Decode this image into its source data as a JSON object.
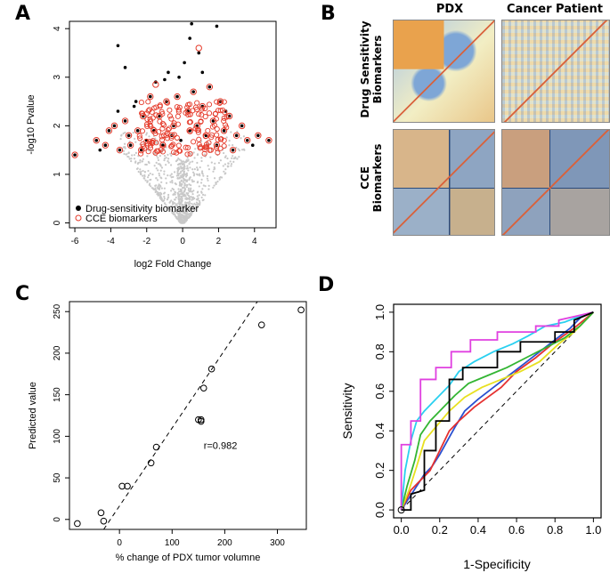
{
  "panels": {
    "a": "A",
    "b": "B",
    "c": "C",
    "d": "D"
  },
  "colors": {
    "drug": "#000000",
    "cce": "#e53a2a",
    "background": "#c8c8c8",
    "heat_warm": "#e8a24a",
    "heat_cool": "#7ea6d6",
    "heat_neutral": "#f2eec4"
  },
  "panel_b": {
    "col_headers": [
      "PDX",
      "Cancer Patient"
    ],
    "row_labels": [
      [
        "Drug Sensitivity",
        "Biomarkers"
      ],
      [
        "CCE",
        "Biomarkers"
      ]
    ]
  },
  "chart_data": [
    {
      "id": "volcano",
      "type": "scatter",
      "xlabel": "log2 Fold Change",
      "ylabel": "-log10 Pvalue",
      "xlim": [
        -6.3,
        5.2
      ],
      "ylim": [
        -0.1,
        4.15
      ],
      "xticks": [
        "-6",
        "-4",
        "-2",
        "0",
        "2",
        "4"
      ],
      "yticks": [
        "0",
        "1",
        "2",
        "3",
        "4"
      ],
      "legend": [
        "Drug-sensitivity biomarker",
        "CCE biomarkers"
      ],
      "series": [
        {
          "name": "Drug-sensitivity biomarker",
          "marker": "filled-dot",
          "x": [
            -6,
            -4.8,
            -4.6,
            -4.3,
            -4.1,
            -3.8,
            -3.6,
            -3.5,
            -3.2,
            -3.0,
            -2.9,
            -2.7,
            -2.5,
            -2.3,
            -2.2,
            -2.0,
            -1.8,
            -1.6,
            -1.5,
            -1.3,
            -1.1,
            -0.9,
            -0.8,
            -0.6,
            -0.5,
            -0.3,
            -0.1,
            0.1,
            0.3,
            0.4,
            0.6,
            0.8,
            0.9,
            1.1,
            1.3,
            1.5,
            1.7,
            1.9,
            2.1,
            2.3,
            2.6,
            2.8,
            3.0,
            3.3,
            3.6,
            3.9,
            4.2,
            4.8,
            -3.6,
            -3.2,
            -1.0,
            0.5,
            1.9,
            0.4,
            -0.2,
            1.1,
            -2.6,
            2.4
          ],
          "y": [
            1.4,
            1.7,
            1.5,
            1.6,
            1.9,
            2.0,
            2.3,
            1.5,
            2.1,
            1.8,
            1.6,
            2.4,
            1.9,
            1.5,
            2.2,
            1.7,
            2.6,
            1.9,
            2.9,
            2.2,
            1.6,
            2.5,
            3.1,
            1.8,
            2.0,
            2.6,
            1.7,
            3.3,
            2.3,
            1.9,
            2.7,
            2.0,
            3.5,
            2.4,
            1.8,
            2.8,
            2.1,
            1.6,
            2.5,
            1.9,
            2.2,
            1.5,
            1.8,
            2.0,
            1.7,
            1.6,
            1.8,
            1.7,
            3.65,
            3.2,
            2.95,
            4.1,
            4.05,
            3.8,
            3.0,
            3.1,
            2.5,
            2.3
          ]
        },
        {
          "name": "CCE biomarkers",
          "marker": "open-circle",
          "x": [
            -6,
            -4.8,
            -4.3,
            -4.1,
            -3.8,
            -3.2,
            -3.0,
            -2.9,
            -2.5,
            -2.3,
            -2.2,
            -1.8,
            -1.6,
            -1.3,
            -1.1,
            -0.9,
            -0.6,
            -0.5,
            -0.3,
            0.3,
            0.6,
            0.8,
            1.1,
            1.3,
            1.5,
            1.7,
            1.9,
            2.1,
            2.3,
            2.6,
            3.0,
            3.3,
            3.6,
            4.2,
            4.8,
            0.9,
            0.4,
            -1.5,
            2.8,
            -3.5
          ],
          "y": [
            1.4,
            1.7,
            1.6,
            1.9,
            2.0,
            2.1,
            1.8,
            1.6,
            1.9,
            1.5,
            2.2,
            2.6,
            1.9,
            2.2,
            1.6,
            2.5,
            1.8,
            2.0,
            2.6,
            2.3,
            2.7,
            2.0,
            2.4,
            1.8,
            2.8,
            2.1,
            1.6,
            2.5,
            1.9,
            2.2,
            1.8,
            2.0,
            1.7,
            1.8,
            1.7,
            3.6,
            1.9,
            2.85,
            1.5,
            1.5
          ]
        }
      ]
    },
    {
      "id": "correlation",
      "type": "scatter",
      "xlabel": "% change of PDX tumor volumne",
      "ylabel": "Predicted value",
      "xlim": [
        -95,
        355
      ],
      "ylim": [
        -12,
        262
      ],
      "xticks": [
        "0",
        "100",
        "200",
        "300"
      ],
      "yticks": [
        "0",
        "50",
        "100",
        "150",
        "200",
        "250"
      ],
      "annotation": "r=0.982",
      "x": [
        -80,
        -35,
        -30,
        5,
        15,
        60,
        70,
        150,
        155,
        155,
        160,
        175,
        270,
        345
      ],
      "y": [
        -5,
        8,
        -2,
        40,
        40,
        68,
        87,
        120,
        118,
        120,
        158,
        181,
        234,
        252
      ],
      "fit_line": {
        "x": [
          -30,
          262
        ],
        "y": [
          -12,
          262
        ]
      }
    },
    {
      "id": "roc",
      "type": "line",
      "xlabel": "1-Specificity",
      "ylabel": "Sensitivity",
      "xlim": [
        -0.04,
        1.04
      ],
      "ylim": [
        -0.04,
        1.04
      ],
      "xticks": [
        "0.0",
        "0.2",
        "0.4",
        "0.6",
        "0.8",
        "1.0"
      ],
      "yticks": [
        "0.0",
        "0.2",
        "0.4",
        "0.6",
        "0.8",
        "1.0"
      ],
      "diagonal": true,
      "series": [
        {
          "name": "black",
          "color": "#000000",
          "x": [
            0,
            0.05,
            0.05,
            0.12,
            0.12,
            0.18,
            0.18,
            0.25,
            0.25,
            0.32,
            0.32,
            0.5,
            0.5,
            0.62,
            0.62,
            0.8,
            0.8,
            0.9,
            0.9,
            1.0
          ],
          "y": [
            0,
            0,
            0.08,
            0.1,
            0.3,
            0.3,
            0.45,
            0.45,
            0.66,
            0.66,
            0.72,
            0.72,
            0.8,
            0.8,
            0.85,
            0.85,
            0.9,
            0.9,
            0.96,
            1.0
          ]
        },
        {
          "name": "magenta",
          "color": "#e040e0",
          "x": [
            0,
            0,
            0.05,
            0.05,
            0.1,
            0.1,
            0.18,
            0.18,
            0.26,
            0.26,
            0.36,
            0.36,
            0.5,
            0.5,
            0.7,
            0.7,
            0.82,
            0.82,
            1.0
          ],
          "y": [
            0,
            0.33,
            0.33,
            0.45,
            0.45,
            0.66,
            0.66,
            0.72,
            0.72,
            0.8,
            0.8,
            0.86,
            0.86,
            0.9,
            0.9,
            0.93,
            0.93,
            0.96,
            1.0
          ]
        },
        {
          "name": "cyan",
          "color": "#2ad0f0",
          "x": [
            0,
            0.02,
            0.05,
            0.08,
            0.12,
            0.18,
            0.25,
            0.3,
            0.38,
            0.48,
            0.58,
            0.66,
            0.75,
            0.85,
            0.93,
            1.0
          ],
          "y": [
            0,
            0.2,
            0.35,
            0.45,
            0.5,
            0.56,
            0.63,
            0.7,
            0.75,
            0.8,
            0.84,
            0.88,
            0.93,
            0.95,
            0.98,
            1.0
          ]
        },
        {
          "name": "green",
          "color": "#33b533",
          "x": [
            0,
            0.03,
            0.07,
            0.1,
            0.15,
            0.2,
            0.28,
            0.35,
            0.45,
            0.55,
            0.65,
            0.75,
            0.85,
            0.93,
            1.0
          ],
          "y": [
            0,
            0.12,
            0.25,
            0.38,
            0.45,
            0.5,
            0.58,
            0.64,
            0.68,
            0.72,
            0.77,
            0.82,
            0.87,
            0.93,
            1.0
          ]
        },
        {
          "name": "yellow",
          "color": "#e8e020",
          "x": [
            0,
            0.04,
            0.08,
            0.12,
            0.18,
            0.25,
            0.33,
            0.42,
            0.52,
            0.62,
            0.72,
            0.82,
            0.9,
            1.0
          ],
          "y": [
            0,
            0.1,
            0.22,
            0.35,
            0.42,
            0.5,
            0.57,
            0.62,
            0.66,
            0.7,
            0.75,
            0.84,
            0.9,
            1.0
          ]
        },
        {
          "name": "red",
          "color": "#e53030",
          "x": [
            0,
            0.05,
            0.1,
            0.15,
            0.2,
            0.25,
            0.3,
            0.38,
            0.45,
            0.52,
            0.6,
            0.7,
            0.8,
            0.9,
            1.0
          ],
          "y": [
            0,
            0.1,
            0.15,
            0.2,
            0.3,
            0.4,
            0.45,
            0.52,
            0.57,
            0.62,
            0.7,
            0.77,
            0.85,
            0.92,
            1.0
          ]
        },
        {
          "name": "blue",
          "color": "#2a50d0",
          "x": [
            0,
            0.04,
            0.08,
            0.12,
            0.16,
            0.2,
            0.24,
            0.28,
            0.33,
            0.4,
            0.48,
            0.56,
            0.64,
            0.72,
            0.8,
            0.88,
            0.94,
            1.0
          ],
          "y": [
            0,
            0.06,
            0.12,
            0.18,
            0.22,
            0.28,
            0.35,
            0.42,
            0.5,
            0.56,
            0.62,
            0.68,
            0.74,
            0.8,
            0.86,
            0.92,
            0.98,
            1.0
          ]
        }
      ]
    }
  ]
}
